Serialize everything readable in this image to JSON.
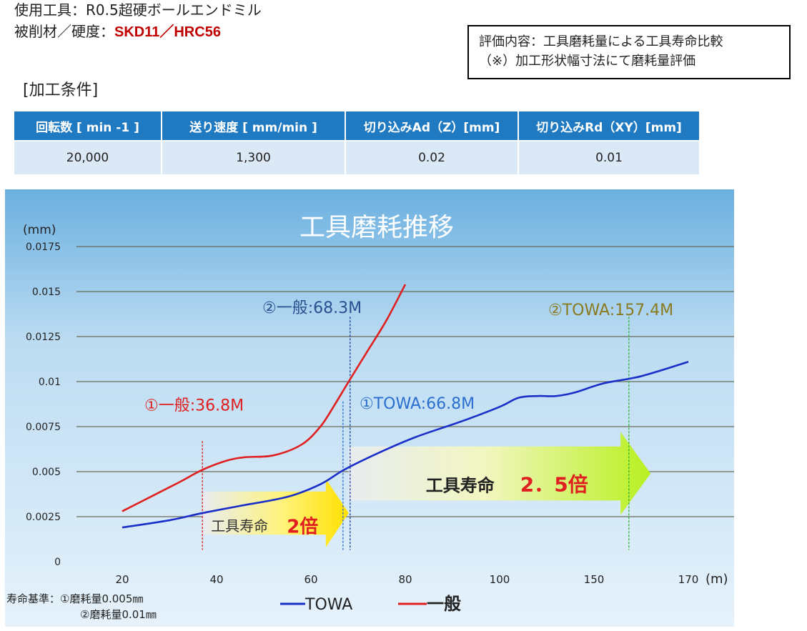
{
  "header": {
    "tool_label": "使用工具：R0.5超硬ボールエンドミル",
    "material_label": "被削材／硬度：",
    "material_value": "SKD11／HRC56",
    "eval_line1": "評価内容：工具磨耗量による工具寿命比較",
    "eval_line2": "（※）加工形状幅寸法にて磨耗量評価",
    "conditions_title": "[加工条件]"
  },
  "conditions_table": {
    "headers": [
      "回転数 [ min -1 ]",
      "送り速度 [ mm/min ]",
      "切り込みAd（Z）[mm]",
      "切り込みRd（XY）[mm]"
    ],
    "values": [
      "20,000",
      "1,300",
      "0.02",
      "0.01"
    ]
  },
  "chart_data": {
    "type": "line",
    "title": "工具磨耗推移",
    "y_unit": "(mm)",
    "x_unit": "(m)",
    "x_tick_labels": [
      "20",
      "40",
      "60",
      "80",
      "100",
      "150",
      "170"
    ],
    "y_tick_labels": [
      "0",
      "0.0025",
      "0.005",
      "0.0075",
      "0.01",
      "0.0125",
      "0.015",
      "0.0175"
    ],
    "ylim": [
      0,
      0.0175
    ],
    "grid": true,
    "series": [
      {
        "name": "TOWA",
        "color": "#1a2fc8",
        "points": [
          [
            20,
            0.0019
          ],
          [
            30,
            0.0023
          ],
          [
            37,
            0.0027
          ],
          [
            45,
            0.0031
          ],
          [
            55,
            0.0036
          ],
          [
            62,
            0.0043
          ],
          [
            67,
            0.0051
          ],
          [
            74,
            0.006
          ],
          [
            82,
            0.0069
          ],
          [
            92,
            0.0078
          ],
          [
            100,
            0.0086
          ],
          [
            110,
            0.0091
          ],
          [
            120,
            0.0092
          ],
          [
            130,
            0.0092
          ],
          [
            140,
            0.0094
          ],
          [
            152,
            0.0099
          ],
          [
            160,
            0.0103
          ],
          [
            170,
            0.0111
          ]
        ]
      },
      {
        "name": "一般",
        "color": "#e02020",
        "points": [
          [
            20,
            0.0028
          ],
          [
            26,
            0.0036
          ],
          [
            32,
            0.0044
          ],
          [
            37,
            0.0051
          ],
          [
            42,
            0.0056
          ],
          [
            46,
            0.0058
          ],
          [
            52,
            0.0059
          ],
          [
            58,
            0.0065
          ],
          [
            62,
            0.0075
          ],
          [
            65,
            0.0087
          ],
          [
            68,
            0.01
          ],
          [
            72,
            0.0117
          ],
          [
            76,
            0.0134
          ],
          [
            80,
            0.0154
          ]
        ]
      }
    ],
    "annotations": [
      {
        "text": "①一般:36.8M",
        "x": 37,
        "color": "#e02020"
      },
      {
        "text": "②一般:68.3M",
        "x": 68.3,
        "color": "#2a5090"
      },
      {
        "text": "①TOWA:66.8M",
        "x": 66.8,
        "color": "#2a6fd0"
      },
      {
        "text": "②TOWA:157.4M",
        "x": 157.4,
        "color": "#8a7a20"
      }
    ],
    "arrow1": {
      "text": "工具寿命",
      "multiplier": "2倍"
    },
    "arrow2": {
      "text": "工具寿命",
      "multiplier": "2．5倍"
    },
    "footnote_line1": "寿命基準：①磨耗量0.005㎜",
    "footnote_line2": "②磨耗量0.01㎜",
    "legend": [
      "TOWA",
      "一般"
    ]
  }
}
